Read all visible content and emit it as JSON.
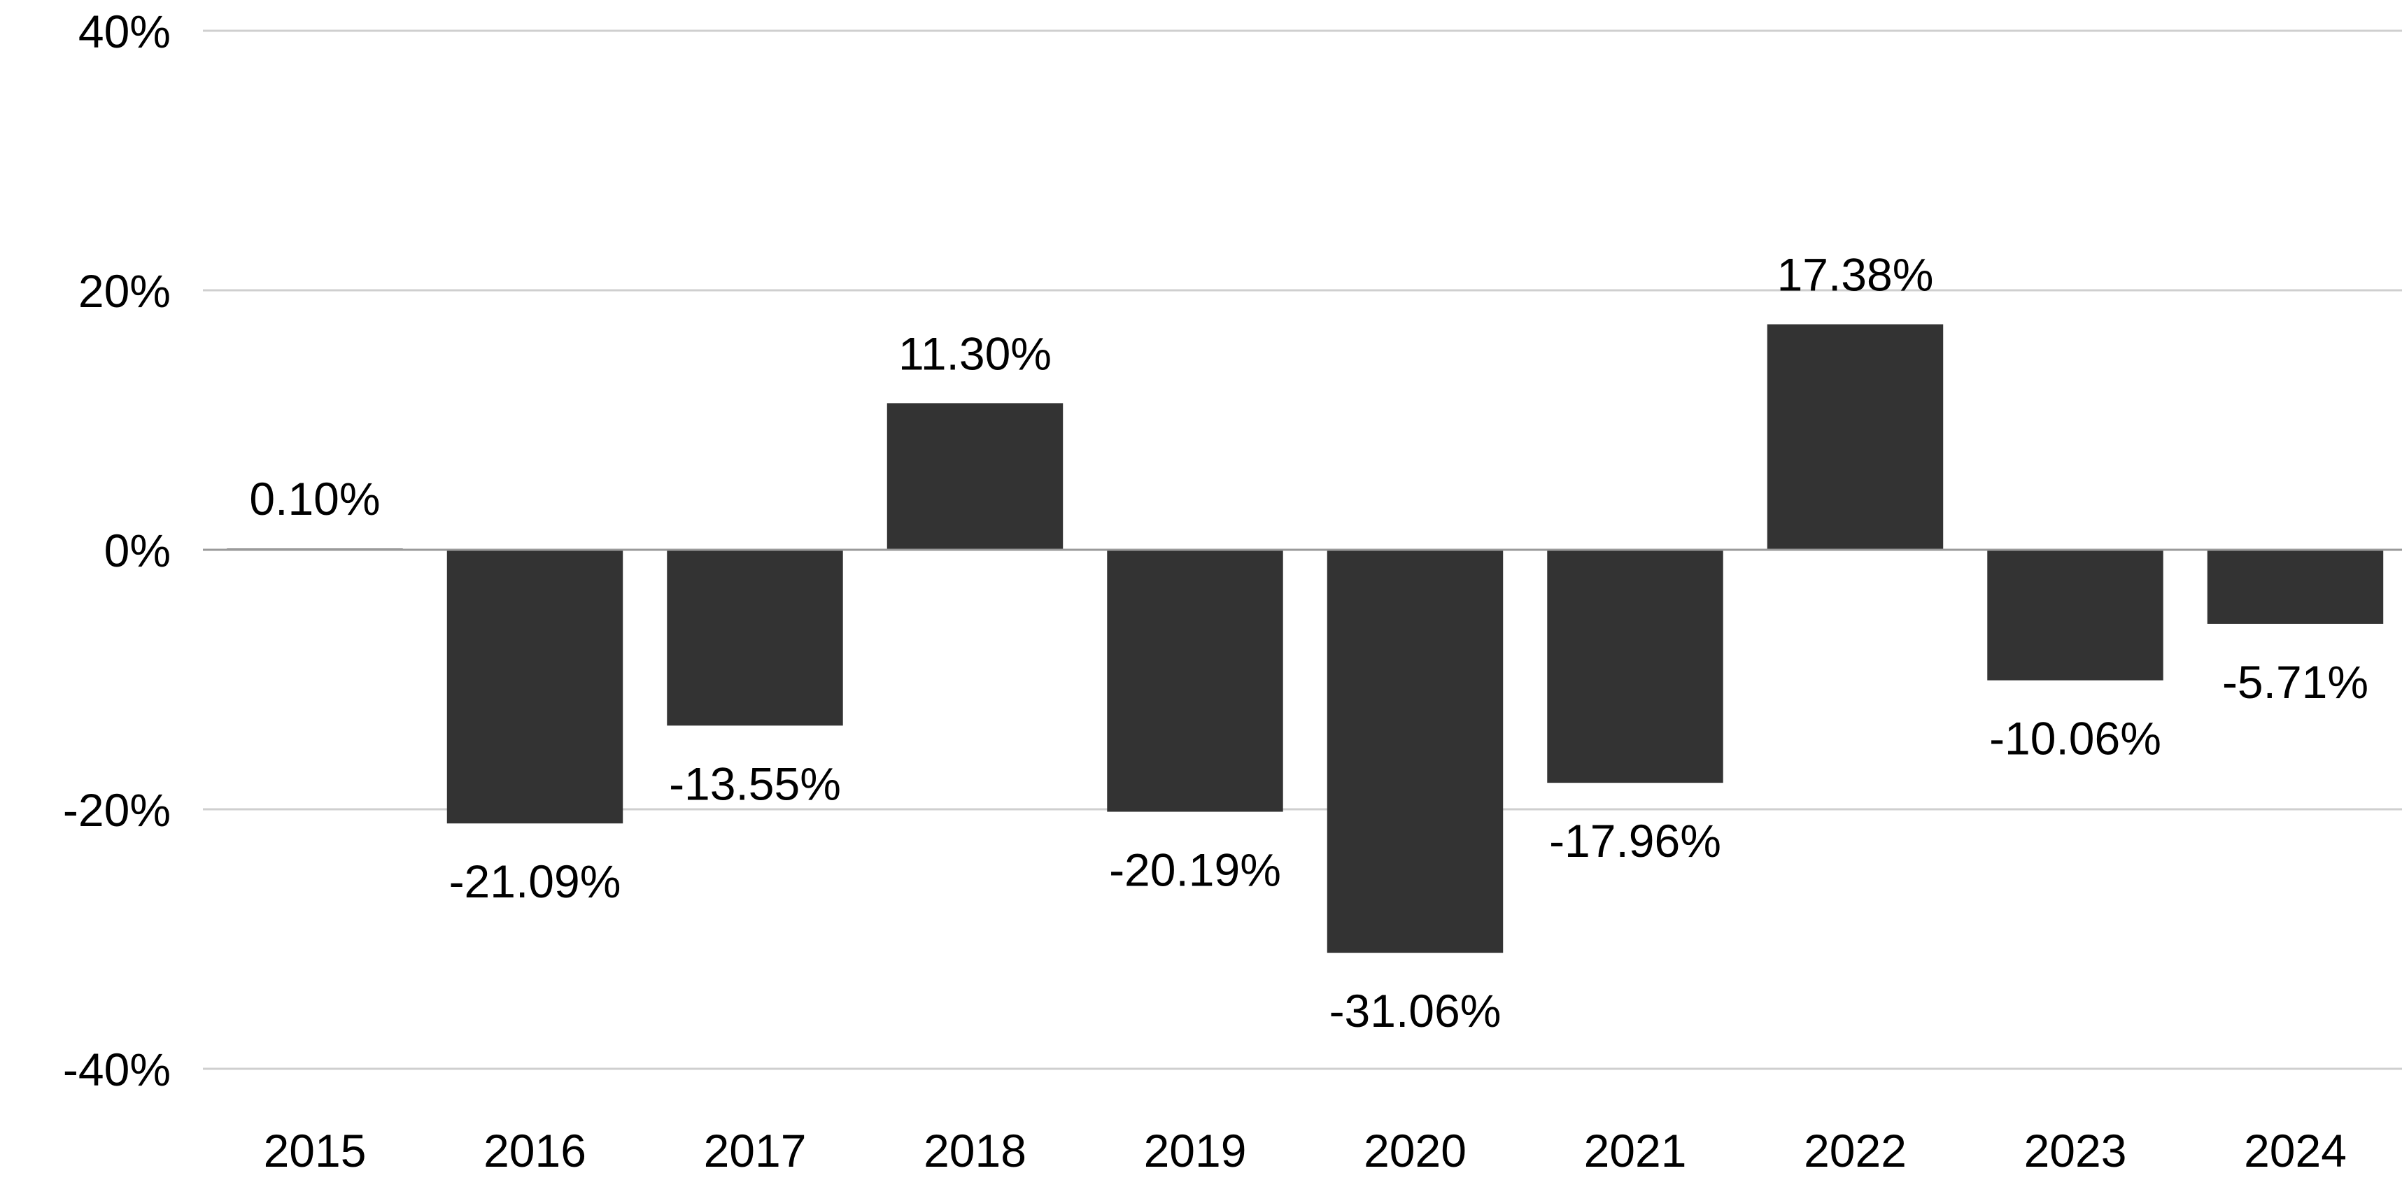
{
  "colors": {
    "bar": "#333333",
    "gridline": "#cfcfcf",
    "baseline": "#9a9a9a",
    "text": "#000000",
    "background": "#ffffff"
  },
  "chart_data": {
    "type": "bar",
    "title": "",
    "xlabel": "",
    "ylabel": "",
    "categories": [
      "2015",
      "2016",
      "2017",
      "2018",
      "2019",
      "2020",
      "2021",
      "2022",
      "2023",
      "2024"
    ],
    "values": [
      0.1,
      -21.09,
      -13.55,
      11.3,
      -20.19,
      -31.06,
      -17.96,
      17.38,
      -10.06,
      -5.71
    ],
    "data_labels": [
      "0.10%",
      "-21.09%",
      "-13.55%",
      "11.30%",
      "-20.19%",
      "-31.06%",
      "-17.96%",
      "17.38%",
      "-10.06%",
      "-5.71%"
    ],
    "ylim": [
      -40,
      40
    ],
    "y_ticks": [
      40,
      20,
      0,
      -20,
      -40
    ],
    "y_tick_labels": [
      "40%",
      "20%",
      "0%",
      "-20%",
      "-40%"
    ],
    "grid": true,
    "legend": "none"
  }
}
